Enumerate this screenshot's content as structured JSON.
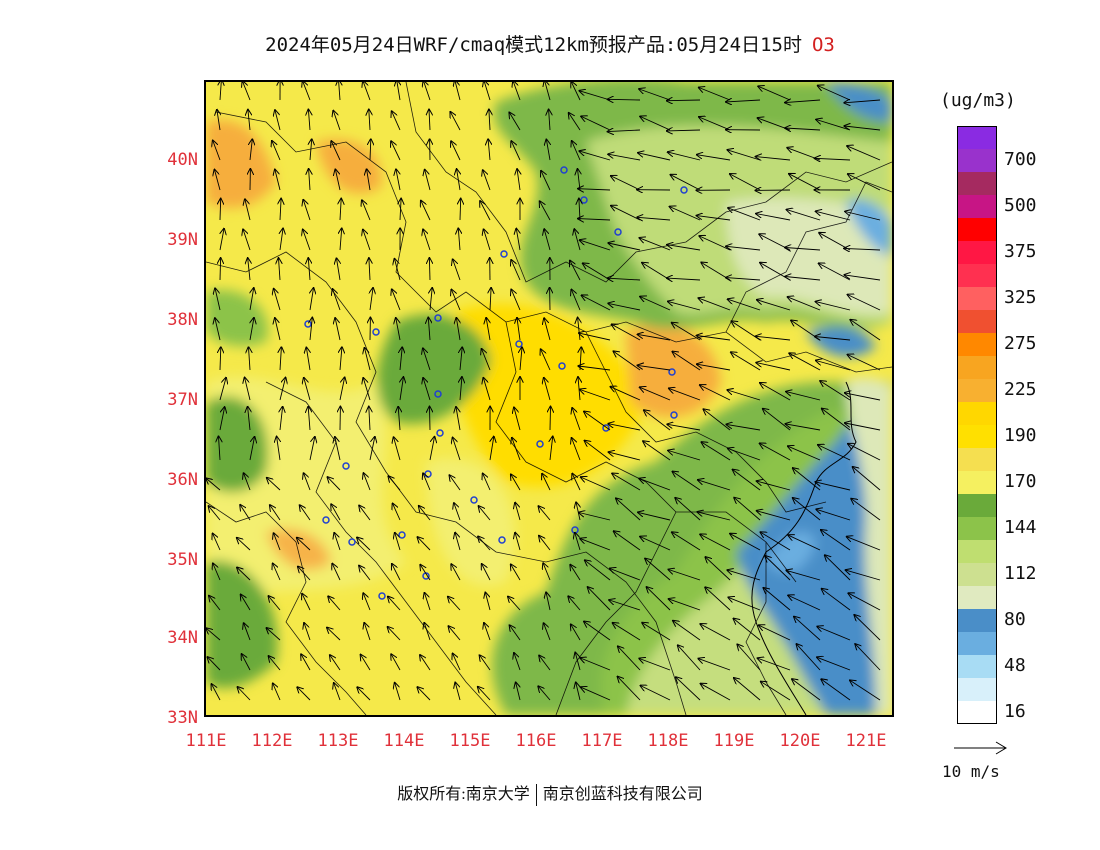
{
  "title": {
    "text": "2024年05月24日WRF/cmaq模式12km预报产品:05月24日15时",
    "species": "O3"
  },
  "axes": {
    "lat_labels": [
      "40N",
      "39N",
      "38N",
      "37N",
      "36N",
      "35N",
      "34N",
      "33N"
    ],
    "lon_labels": [
      "111E",
      "112E",
      "113E",
      "114E",
      "115E",
      "116E",
      "117E",
      "118E",
      "119E",
      "120E",
      "121E"
    ]
  },
  "legend": {
    "unit": "(ug/m3)",
    "bins": [
      {
        "color": "#8a2be2",
        "label": ""
      },
      {
        "color": "#9932cc",
        "label": "700"
      },
      {
        "color": "#a52a60",
        "label": ""
      },
      {
        "color": "#c71585",
        "label": "500"
      },
      {
        "color": "#ff0000",
        "label": ""
      },
      {
        "color": "#ff1744",
        "label": "375"
      },
      {
        "color": "#ff3050",
        "label": ""
      },
      {
        "color": "#ff6060",
        "label": "325"
      },
      {
        "color": "#f05030",
        "label": ""
      },
      {
        "color": "#ff8800",
        "label": "275"
      },
      {
        "color": "#f8a520",
        "label": ""
      },
      {
        "color": "#f8b030",
        "label": "225"
      },
      {
        "color": "#ffd700",
        "label": ""
      },
      {
        "color": "#ffe000",
        "label": "190"
      },
      {
        "color": "#f5df50",
        "label": ""
      },
      {
        "color": "#f5f060",
        "label": "170"
      },
      {
        "color": "#6aaa3a",
        "label": ""
      },
      {
        "color": "#8cc34a",
        "label": "144"
      },
      {
        "color": "#bfde70",
        "label": ""
      },
      {
        "color": "#cde090",
        "label": "112"
      },
      {
        "color": "#e0eac0",
        "label": ""
      },
      {
        "color": "#4a8ec8",
        "label": "80"
      },
      {
        "color": "#6aaee0",
        "label": ""
      },
      {
        "color": "#a8dcf4",
        "label": "48"
      },
      {
        "color": "#d8f0fa",
        "label": ""
      },
      {
        "color": "#ffffff",
        "label": "16"
      }
    ]
  },
  "wind_reference": {
    "label": "10 m/s"
  },
  "footer": {
    "left": "版权所有:南京大学",
    "right": "南京创蓝科技有限公司"
  }
}
